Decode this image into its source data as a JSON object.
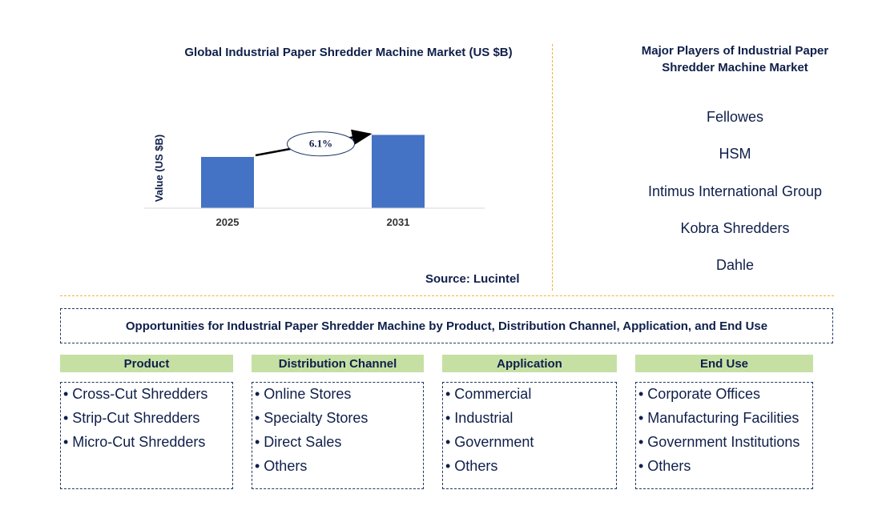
{
  "chart_data": {
    "type": "bar",
    "title": "Global Industrial Paper Shredder Machine Market (US $B)",
    "categories": [
      "2025",
      "2031"
    ],
    "values": [
      1.0,
      1.43
    ],
    "ylabel": "Value (US $B)",
    "xlabel": "",
    "ylim": [
      0,
      1.5
    ],
    "annotation": "6.1%",
    "bar_color": "#4472c4",
    "source": "Source: Lucintel"
  },
  "players": {
    "title": "Major Players of Industrial Paper Shredder Machine Market",
    "items": [
      "Fellowes",
      "HSM",
      "Intimus International Group",
      "Kobra Shredders",
      "Dahle"
    ]
  },
  "opportunities": {
    "title": "Opportunities for Industrial Paper Shredder Machine by Product, Distribution Channel, Application, and End Use",
    "segments": [
      {
        "header": "Product",
        "items": [
          "• Cross-Cut Shredders",
          "• Strip-Cut Shredders",
          "• Micro-Cut Shredders"
        ]
      },
      {
        "header": "Distribution Channel",
        "items": [
          "• Online Stores",
          "• Specialty Stores",
          "• Direct Sales",
          "• Others"
        ]
      },
      {
        "header": "Application",
        "items": [
          "• Commercial",
          "• Industrial",
          "• Government",
          "• Others"
        ]
      },
      {
        "header": "End Use",
        "items": [
          "• Corporate Offices",
          "• Manufacturing Facilities",
          "• Government Institutions",
          "• Others"
        ]
      }
    ]
  },
  "colors": {
    "accent": "#4472c4",
    "divider": "#f2b233",
    "segment_header": "#c6e0a4",
    "text": "#0f1f4a"
  }
}
